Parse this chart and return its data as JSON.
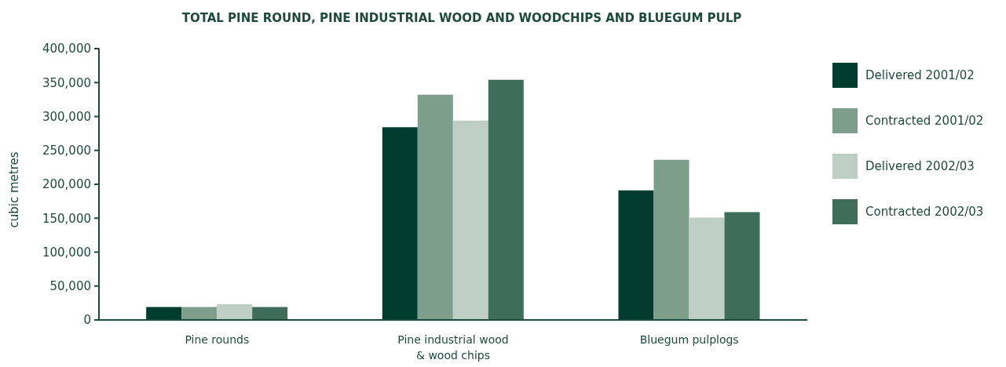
{
  "chart_data": {
    "type": "bar",
    "title": "TOTAL PINE ROUND, PINE INDUSTRIAL WOOD AND WOODCHIPS AND BLUEGUM PULP",
    "ylabel": "cubic metres",
    "categories": [
      "Pine rounds",
      "Pine industrial wood\n& wood chips",
      "Bluegum pulplogs"
    ],
    "series": [
      {
        "name": "Delivered 2001/02",
        "color": "#003d2e",
        "values": [
          19000,
          284000,
          191000
        ]
      },
      {
        "name": "Contracted 2001/02",
        "color": "#7e9e8c",
        "values": [
          19000,
          332000,
          236000
        ]
      },
      {
        "name": "Delivered 2002/03",
        "color": "#bfcec4",
        "values": [
          23000,
          294000,
          151000
        ]
      },
      {
        "name": "Contracted 2002/03",
        "color": "#3e6e5a",
        "values": [
          19000,
          354000,
          159000
        ]
      }
    ],
    "ylim": [
      0,
      400000
    ],
    "yticks": [
      0,
      {
        "value": 50000,
        "label": "50,000"
      },
      {
        "value": 100000,
        "label": "100,000"
      },
      {
        "value": 150000,
        "label": "150,000"
      },
      {
        "value": 200000,
        "label": "200,000"
      },
      {
        "value": 250000,
        "label": "250,000"
      },
      {
        "value": 300000,
        "label": "300,000"
      },
      {
        "value": 350000,
        "label": "350,000"
      },
      {
        "value": 400000,
        "label": "400,000"
      }
    ],
    "legend": "right"
  }
}
